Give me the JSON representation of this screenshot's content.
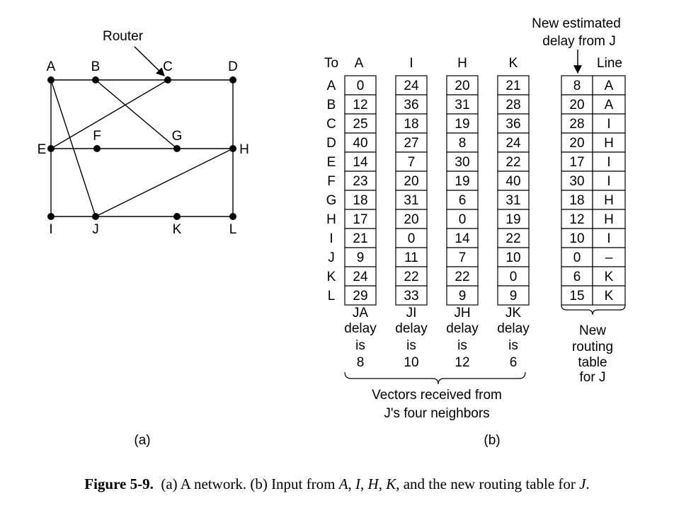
{
  "network": {
    "router_label": "Router",
    "nodes": [
      "A",
      "B",
      "C",
      "D",
      "E",
      "F",
      "G",
      "H",
      "I",
      "J",
      "K",
      "L"
    ],
    "edges": [
      [
        "A",
        "B"
      ],
      [
        "B",
        "C"
      ],
      [
        "C",
        "D"
      ],
      [
        "A",
        "E"
      ],
      [
        "A",
        "J"
      ],
      [
        "B",
        "G"
      ],
      [
        "C",
        "E"
      ],
      [
        "D",
        "H"
      ],
      [
        "E",
        "F"
      ],
      [
        "F",
        "G"
      ],
      [
        "G",
        "H"
      ],
      [
        "E",
        "I"
      ],
      [
        "I",
        "J"
      ],
      [
        "J",
        "K"
      ],
      [
        "K",
        "L"
      ],
      [
        "J",
        "H"
      ],
      [
        "H",
        "L"
      ]
    ],
    "label": "(a)"
  },
  "vectors": {
    "to_label": "To",
    "rows": [
      "A",
      "B",
      "C",
      "D",
      "E",
      "F",
      "G",
      "H",
      "I",
      "J",
      "K",
      "L"
    ],
    "columns": [
      {
        "name": "A",
        "values": [
          "0",
          "12",
          "25",
          "40",
          "14",
          "23",
          "18",
          "17",
          "21",
          "9",
          "24",
          "29"
        ],
        "footer": [
          "JA",
          "delay",
          "is",
          "8"
        ]
      },
      {
        "name": "I",
        "values": [
          "24",
          "36",
          "18",
          "27",
          "7",
          "20",
          "31",
          "20",
          "0",
          "11",
          "22",
          "33"
        ],
        "footer": [
          "JI",
          "delay",
          "is",
          "10"
        ]
      },
      {
        "name": "H",
        "values": [
          "20",
          "31",
          "19",
          "8",
          "30",
          "19",
          "6",
          "0",
          "14",
          "7",
          "22",
          "9"
        ],
        "footer": [
          "JH",
          "delay",
          "is",
          "12"
        ]
      },
      {
        "name": "K",
        "values": [
          "21",
          "28",
          "36",
          "24",
          "22",
          "40",
          "31",
          "19",
          "22",
          "10",
          "0",
          "9"
        ],
        "footer": [
          "JK",
          "delay",
          "is",
          "6"
        ]
      }
    ],
    "brace_label": [
      "Vectors received from",
      "J's four neighbors"
    ]
  },
  "routing_table": {
    "estimate_label": [
      "New estimated",
      "delay from J"
    ],
    "line_label": "Line",
    "delays": [
      "8",
      "20",
      "28",
      "20",
      "17",
      "30",
      "18",
      "12",
      "10",
      "0",
      "6",
      "15"
    ],
    "lines": [
      "A",
      "A",
      "I",
      "H",
      "I",
      "I",
      "H",
      "H",
      "I",
      "–",
      "K",
      "K"
    ],
    "footer": [
      "New",
      "routing",
      "table",
      "for J"
    ]
  },
  "panel_b_label": "(b)",
  "caption": {
    "figure": "Figure 5-9.",
    "prefix": "(a) A network.  (b) Input from ",
    "n1": "A",
    "s1": ", ",
    "n2": "I",
    "s2": ", ",
    "n3": "H",
    "s3": ", ",
    "n4": "K",
    "s4": ", and the new routing table for ",
    "n5": "J",
    "suffix": "."
  }
}
